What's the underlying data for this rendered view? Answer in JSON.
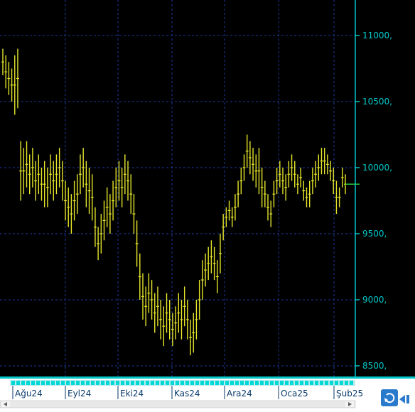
{
  "colors": {
    "plot_bg": "#000000",
    "grid": "#1a3a9a",
    "axis": "#00c8c8",
    "axis_labels": "#00c8c8",
    "price": "#e6e62a",
    "last_price_marker": "#2ecc40",
    "strip_bg": "#b8ecec",
    "strip_block": "#00d8d8",
    "strip_text": "#0a3a6a"
  },
  "icons": {
    "refresh": "refresh-icon",
    "play_left": "play-left-icon",
    "scroll_left": "scroll-left-icon",
    "scroll_right": "scroll-right-icon"
  },
  "chart_data": {
    "type": "ohlc",
    "x_labels": [
      "Ağu24",
      "Eyl24",
      "Eki24",
      "Kas24",
      "Ara24",
      "Oca25",
      "Şub25"
    ],
    "y_ticks": [
      "11000,",
      "10500,",
      "10000,",
      "9500,",
      "9000,",
      "8500,"
    ],
    "ylim": [
      8450,
      11200
    ],
    "grid": true,
    "series": [
      {
        "values": [
          {
            "h": 10900,
            "l": 10700
          },
          {
            "h": 10850,
            "l": 10600
          },
          {
            "h": 10800,
            "l": 10550
          },
          {
            "h": 10750,
            "l": 10500
          },
          {
            "h": 10850,
            "l": 10400
          },
          {
            "h": 10900,
            "l": 10450
          },
          {
            "h": 10200,
            "l": 9750
          },
          {
            "h": 10150,
            "l": 9800
          },
          {
            "h": 10200,
            "l": 9850
          },
          {
            "h": 10100,
            "l": 9800
          },
          {
            "h": 10150,
            "l": 9850
          },
          {
            "h": 10050,
            "l": 9750
          },
          {
            "h": 10100,
            "l": 9800
          },
          {
            "h": 10000,
            "l": 9750
          },
          {
            "h": 10050,
            "l": 9700
          },
          {
            "h": 10000,
            "l": 9700
          },
          {
            "h": 10100,
            "l": 9800
          },
          {
            "h": 10050,
            "l": 9750
          },
          {
            "h": 10100,
            "l": 9800
          },
          {
            "h": 10150,
            "l": 9850
          },
          {
            "h": 10050,
            "l": 9750
          },
          {
            "h": 9900,
            "l": 9600
          },
          {
            "h": 9850,
            "l": 9550
          },
          {
            "h": 9800,
            "l": 9500
          },
          {
            "h": 9900,
            "l": 9600
          },
          {
            "h": 9950,
            "l": 9650
          },
          {
            "h": 10100,
            "l": 9800
          },
          {
            "h": 10150,
            "l": 9850
          },
          {
            "h": 10050,
            "l": 9700
          },
          {
            "h": 10000,
            "l": 9650
          },
          {
            "h": 9950,
            "l": 9600
          },
          {
            "h": 9700,
            "l": 9400
          },
          {
            "h": 9550,
            "l": 9300
          },
          {
            "h": 9650,
            "l": 9350
          },
          {
            "h": 9750,
            "l": 9450
          },
          {
            "h": 9850,
            "l": 9550
          },
          {
            "h": 9800,
            "l": 9500
          },
          {
            "h": 9900,
            "l": 9600
          },
          {
            "h": 10000,
            "l": 9700
          },
          {
            "h": 10050,
            "l": 9750
          },
          {
            "h": 10000,
            "l": 9700
          },
          {
            "h": 10100,
            "l": 9800
          },
          {
            "h": 10050,
            "l": 9750
          },
          {
            "h": 9950,
            "l": 9650
          },
          {
            "h": 9800,
            "l": 9500
          },
          {
            "h": 9600,
            "l": 9250
          },
          {
            "h": 9350,
            "l": 9000
          },
          {
            "h": 9200,
            "l": 8850
          },
          {
            "h": 9100,
            "l": 8800
          },
          {
            "h": 9200,
            "l": 8900
          },
          {
            "h": 9150,
            "l": 8850
          },
          {
            "h": 9050,
            "l": 8750
          },
          {
            "h": 9100,
            "l": 8800
          },
          {
            "h": 9000,
            "l": 8700
          },
          {
            "h": 8950,
            "l": 8650
          },
          {
            "h": 9050,
            "l": 8750
          },
          {
            "h": 9000,
            "l": 8700
          },
          {
            "h": 8900,
            "l": 8650
          },
          {
            "h": 8950,
            "l": 8700
          },
          {
            "h": 9050,
            "l": 8750
          },
          {
            "h": 9000,
            "l": 8700
          },
          {
            "h": 9100,
            "l": 8800
          },
          {
            "h": 9000,
            "l": 8700
          },
          {
            "h": 8850,
            "l": 8580
          },
          {
            "h": 8900,
            "l": 8600
          },
          {
            "h": 9000,
            "l": 8700
          },
          {
            "h": 9150,
            "l": 8850
          },
          {
            "h": 9300,
            "l": 9000
          },
          {
            "h": 9350,
            "l": 9100
          },
          {
            "h": 9400,
            "l": 9150
          },
          {
            "h": 9450,
            "l": 9200
          },
          {
            "h": 9400,
            "l": 9150
          },
          {
            "h": 9300,
            "l": 9050
          },
          {
            "h": 9500,
            "l": 9200
          },
          {
            "h": 9650,
            "l": 9450
          },
          {
            "h": 9700,
            "l": 9550
          },
          {
            "h": 9750,
            "l": 9600
          },
          {
            "h": 9700,
            "l": 9550
          },
          {
            "h": 9800,
            "l": 9600
          },
          {
            "h": 9900,
            "l": 9700
          },
          {
            "h": 10000,
            "l": 9800
          },
          {
            "h": 10100,
            "l": 9900
          },
          {
            "h": 10250,
            "l": 10000
          },
          {
            "h": 10200,
            "l": 9950
          },
          {
            "h": 10150,
            "l": 9900
          },
          {
            "h": 10100,
            "l": 9850
          },
          {
            "h": 10150,
            "l": 9800
          },
          {
            "h": 10000,
            "l": 9700
          },
          {
            "h": 9900,
            "l": 9700
          },
          {
            "h": 9800,
            "l": 9600
          },
          {
            "h": 9750,
            "l": 9550
          },
          {
            "h": 9900,
            "l": 9700
          },
          {
            "h": 10000,
            "l": 9800
          },
          {
            "h": 10050,
            "l": 9850
          },
          {
            "h": 10000,
            "l": 9800
          },
          {
            "h": 9950,
            "l": 9750
          },
          {
            "h": 10050,
            "l": 9850
          },
          {
            "h": 10100,
            "l": 9900
          },
          {
            "h": 10050,
            "l": 9850
          },
          {
            "h": 9950,
            "l": 9800
          },
          {
            "h": 10000,
            "l": 9850
          },
          {
            "h": 9900,
            "l": 9750
          },
          {
            "h": 9850,
            "l": 9700
          },
          {
            "h": 9900,
            "l": 9700
          },
          {
            "h": 10000,
            "l": 9800
          },
          {
            "h": 10050,
            "l": 9850
          },
          {
            "h": 10100,
            "l": 9900
          },
          {
            "h": 10150,
            "l": 9950
          },
          {
            "h": 10150,
            "l": 9950
          },
          {
            "h": 10100,
            "l": 9950
          },
          {
            "h": 10050,
            "l": 9900
          },
          {
            "h": 10000,
            "l": 9800
          },
          {
            "h": 9900,
            "l": 9650
          },
          {
            "h": 9850,
            "l": 9700
          },
          {
            "h": 10000,
            "l": 9850
          },
          {
            "h": 9950,
            "l": 9800
          }
        ]
      }
    ]
  }
}
